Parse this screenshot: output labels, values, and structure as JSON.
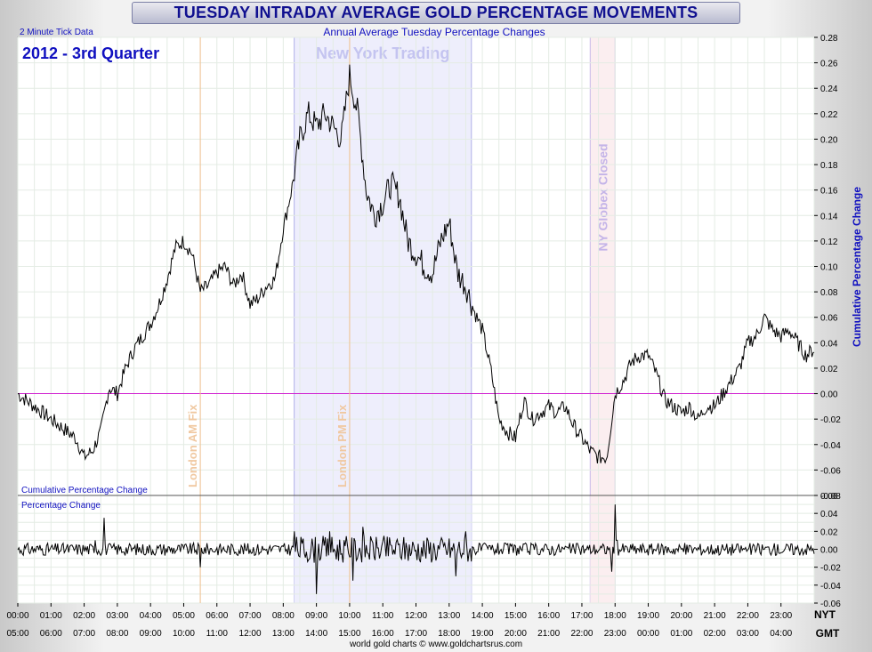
{
  "header": {
    "title": "TUESDAY INTRADAY AVERAGE GOLD PERCENTAGE MOVEMENTS",
    "subtitle": "Annual Average Tuesday Percentage Changes",
    "tick_note": "2 Minute Tick Data",
    "period": "2012 - 3rd Quarter"
  },
  "footer": {
    "credit": "world gold charts © www.goldchartsrus.com",
    "nyt_label": "NYT",
    "gmt_label": "GMT"
  },
  "colors": {
    "ny_band": "#eeeefc",
    "globex_band": "#fbeef0",
    "fix_line": "#f0c090",
    "zero_line": "#d020d0",
    "series": "#000000",
    "axis_title": "#1010c0"
  },
  "chart_data": [
    {
      "type": "line",
      "panel": "upper",
      "title": "",
      "panel_label": "Cumulative Percentage Change",
      "ylabel": "Cumulative Percentage Change",
      "ylim": [
        -0.08,
        0.28
      ],
      "yticks": [
        -0.08,
        -0.06,
        -0.04,
        -0.02,
        0.0,
        0.02,
        0.04,
        0.06,
        0.08,
        0.1,
        0.12,
        0.14,
        0.16,
        0.18,
        0.2,
        0.22,
        0.24,
        0.26,
        0.28
      ],
      "ytick_labels": [
        "-0.08",
        "-0.06",
        "-0.04",
        "-0.02",
        "0.00",
        "0.02",
        "0.04",
        "0.06",
        "0.08",
        "0.10",
        "0.12",
        "0.14",
        "0.16",
        "0.18",
        "0.20",
        "0.22",
        "0.24",
        "0.26",
        "0.28"
      ],
      "x_nyt_labels": [
        "00:00",
        "01:00",
        "02:00",
        "03:00",
        "04:00",
        "05:00",
        "06:00",
        "07:00",
        "08:00",
        "09:00",
        "10:00",
        "11:00",
        "12:00",
        "13:00",
        "14:00",
        "15:00",
        "16:00",
        "17:00",
        "18:00",
        "19:00",
        "20:00",
        "21:00",
        "22:00",
        "23:00"
      ],
      "x_gmt_labels": [
        "05:00",
        "06:00",
        "07:00",
        "08:00",
        "09:00",
        "10:00",
        "11:00",
        "12:00",
        "13:00",
        "14:00",
        "15:00",
        "16:00",
        "17:00",
        "18:00",
        "19:00",
        "20:00",
        "21:00",
        "22:00",
        "23:00",
        "00:00",
        "01:00",
        "02:00",
        "03:00",
        "04:00"
      ],
      "x_unit": "NYT hour",
      "grid": true,
      "shaded_regions": [
        {
          "label": "New York Trading",
          "start": 8.33,
          "end": 13.67
        },
        {
          "label": "NY Globex Closed",
          "start": 17.25,
          "end": 18.0
        }
      ],
      "annotations": [
        {
          "label": "London AM Fix",
          "x": 5.5
        },
        {
          "label": "London PM Fix",
          "x": 10.0
        }
      ],
      "series": [
        {
          "x": [
            0.0,
            0.25,
            0.5,
            0.75,
            1.0,
            1.25,
            1.5,
            1.75,
            2.0,
            2.25,
            2.5,
            2.75,
            3.0,
            3.25,
            3.5,
            3.75,
            4.0,
            4.25,
            4.5,
            4.75,
            5.0,
            5.25,
            5.5,
            5.75,
            6.0,
            6.25,
            6.5,
            6.75,
            7.0,
            7.25,
            7.5,
            7.75,
            8.0,
            8.25,
            8.5,
            8.75,
            9.0,
            9.25,
            9.5,
            9.75,
            10.0,
            10.25,
            10.5,
            10.75,
            11.0,
            11.25,
            11.5,
            11.75,
            12.0,
            12.25,
            12.5,
            12.75,
            13.0,
            13.25,
            13.5,
            13.75,
            14.0,
            14.25,
            14.5,
            14.75,
            15.0,
            15.25,
            15.5,
            15.75,
            16.0,
            16.25,
            16.5,
            16.75,
            17.0,
            17.25,
            17.5,
            17.75,
            18.0,
            18.25,
            18.5,
            18.75,
            19.0,
            19.25,
            19.5,
            19.75,
            20.0,
            20.25,
            20.5,
            20.75,
            21.0,
            21.25,
            21.5,
            21.75,
            22.0,
            22.25,
            22.5,
            22.75,
            23.0,
            23.25,
            23.5,
            23.75,
            24.0
          ],
          "y": [
            0.0,
            -0.005,
            -0.01,
            -0.015,
            -0.02,
            -0.025,
            -0.03,
            -0.035,
            -0.05,
            -0.045,
            -0.03,
            0.005,
            0.0,
            0.02,
            0.035,
            0.045,
            0.055,
            0.07,
            0.09,
            0.115,
            0.12,
            0.11,
            0.08,
            0.085,
            0.095,
            0.1,
            0.085,
            0.095,
            0.07,
            0.075,
            0.085,
            0.09,
            0.13,
            0.16,
            0.2,
            0.22,
            0.21,
            0.22,
            0.21,
            0.2,
            0.25,
            0.22,
            0.16,
            0.14,
            0.15,
            0.165,
            0.155,
            0.12,
            0.11,
            0.1,
            0.095,
            0.12,
            0.135,
            0.095,
            0.085,
            0.065,
            0.05,
            0.02,
            -0.02,
            -0.03,
            -0.035,
            -0.005,
            -0.02,
            -0.015,
            -0.01,
            -0.015,
            -0.01,
            -0.025,
            -0.035,
            -0.045,
            -0.05,
            -0.05,
            0.0,
            0.01,
            0.025,
            0.03,
            0.03,
            0.015,
            -0.005,
            -0.01,
            -0.015,
            -0.01,
            -0.02,
            -0.01,
            -0.01,
            0.0,
            0.01,
            0.02,
            0.04,
            0.045,
            0.06,
            0.05,
            0.045,
            0.05,
            0.04,
            0.03,
            0.035
          ]
        }
      ]
    },
    {
      "type": "line",
      "panel": "lower",
      "title": "",
      "panel_label": "Percentage Change",
      "ylim": [
        -0.06,
        0.06
      ],
      "yticks": [
        -0.06,
        -0.04,
        -0.02,
        0.0,
        0.02,
        0.04,
        0.06
      ],
      "ytick_labels": [
        "-0.06",
        "-0.04",
        "-0.02",
        "0.00",
        "0.02",
        "0.04",
        "0.06"
      ],
      "grid": true,
      "series": [
        {
          "x": [
            0.0,
            2.33,
            2.6,
            5.5,
            8.33,
            9.0,
            9.4,
            10.1,
            10.4,
            13.2,
            13.5,
            17.2,
            17.9,
            18.0,
            18.05,
            24.0
          ],
          "y": [
            0.0,
            0.01,
            0.035,
            -0.02,
            0.02,
            -0.05,
            0.02,
            -0.035,
            0.025,
            -0.03,
            0.02,
            0.0,
            -0.025,
            0.05,
            0.01,
            0.0
          ]
        }
      ]
    }
  ]
}
